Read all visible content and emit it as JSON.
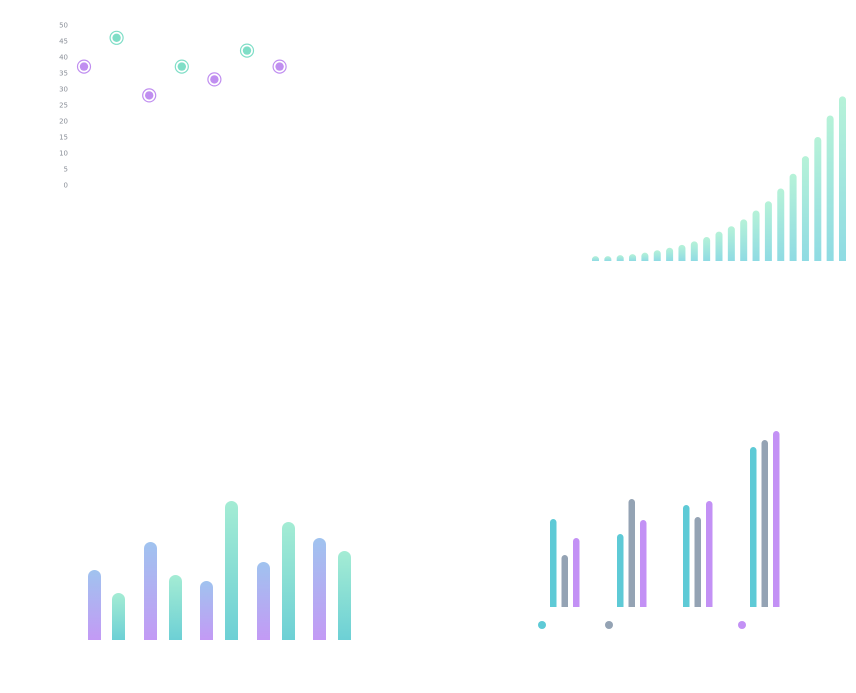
{
  "chart_data": [
    {
      "type": "scatter",
      "ylim": [
        0,
        50
      ],
      "yticks": [
        "50",
        "45",
        "40",
        "35",
        "30",
        "25",
        "20",
        "15",
        "10",
        "5",
        "0"
      ],
      "series": [
        {
          "color": "#c08ef0",
          "points": [
            [
              1,
              37
            ],
            [
              3,
              28
            ],
            [
              5,
              33
            ],
            [
              7,
              37
            ]
          ]
        },
        {
          "color": "#7fdec7",
          "points": [
            [
              2,
              46
            ],
            [
              4,
              37
            ],
            [
              6,
              42
            ]
          ]
        }
      ]
    },
    {
      "type": "bar",
      "gradient": [
        "#b6f2d8",
        "#8fdbe3"
      ],
      "values": [
        1,
        1,
        1.2,
        1.4,
        1.7,
        2.2,
        2.7,
        3.3,
        4,
        4.9,
        6,
        7.1,
        8.5,
        10.3,
        12.2,
        14.8,
        17.8,
        21.4,
        25.3,
        29.7,
        33.6
      ]
    },
    {
      "type": "bar",
      "values": [
        70,
        47,
        98,
        65,
        59,
        139,
        78,
        118,
        102,
        89
      ],
      "colors": [
        [
          "#a0c3ef",
          "#c39af5"
        ],
        [
          "#a4ecd4",
          "#6dd0d5"
        ],
        [
          "#a0c3ef",
          "#c39af5"
        ],
        [
          "#a4ecd4",
          "#6dd0d5"
        ],
        [
          "#a0c3ef",
          "#c39af5"
        ],
        [
          "#a4ecd4",
          "#6dd0d5"
        ],
        [
          "#a0c3ef",
          "#c39af5"
        ],
        [
          "#a4ecd4",
          "#6dd0d5"
        ],
        [
          "#a0c3ef",
          "#c39af5"
        ],
        [
          "#a4ecd4",
          "#6dd0d5"
        ]
      ]
    },
    {
      "type": "bar",
      "series": [
        {
          "color": "#5ecad6",
          "values": [
            88,
            73,
            102,
            160
          ]
        },
        {
          "color": "#94a3b4",
          "values": [
            52,
            108,
            90,
            167
          ]
        },
        {
          "color": "#c391f5",
          "values": [
            69,
            87,
            106,
            176
          ]
        }
      ],
      "legend_colors": [
        "#5ecad6",
        "#94a3b4",
        "#c391f5"
      ]
    }
  ]
}
